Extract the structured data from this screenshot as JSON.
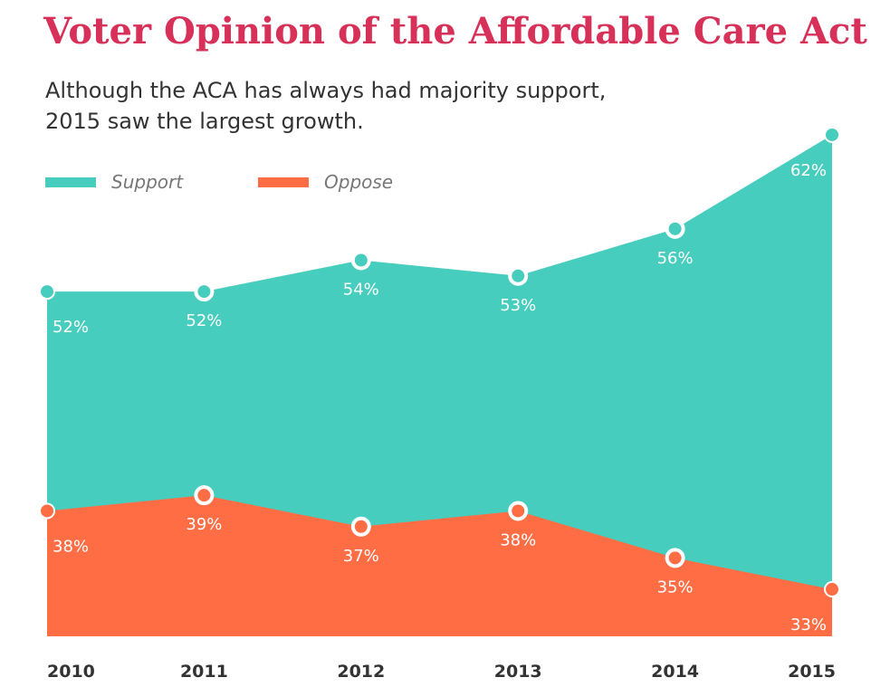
{
  "chart_data": {
    "type": "area",
    "title": "Voter Opinion of the Affordable Care Act",
    "subtitle": [
      "Although the ACA has always had majority support,",
      "2015 saw the largest growth."
    ],
    "categories": [
      "2010",
      "2011",
      "2012",
      "2013",
      "2014",
      "2015"
    ],
    "series": [
      {
        "name": "Support",
        "color": "#47cdbd",
        "values": [
          52,
          52,
          54,
          53,
          56,
          62
        ],
        "value_labels": [
          "52%",
          "52%",
          "54%",
          "53%",
          "56%",
          "62%"
        ]
      },
      {
        "name": "Oppose",
        "color": "#ff6d45",
        "values": [
          38,
          39,
          37,
          38,
          35,
          33
        ],
        "value_labels": [
          "38%",
          "39%",
          "37%",
          "38%",
          "35%",
          "33%"
        ]
      }
    ],
    "ylim": [
      30,
      65
    ]
  }
}
